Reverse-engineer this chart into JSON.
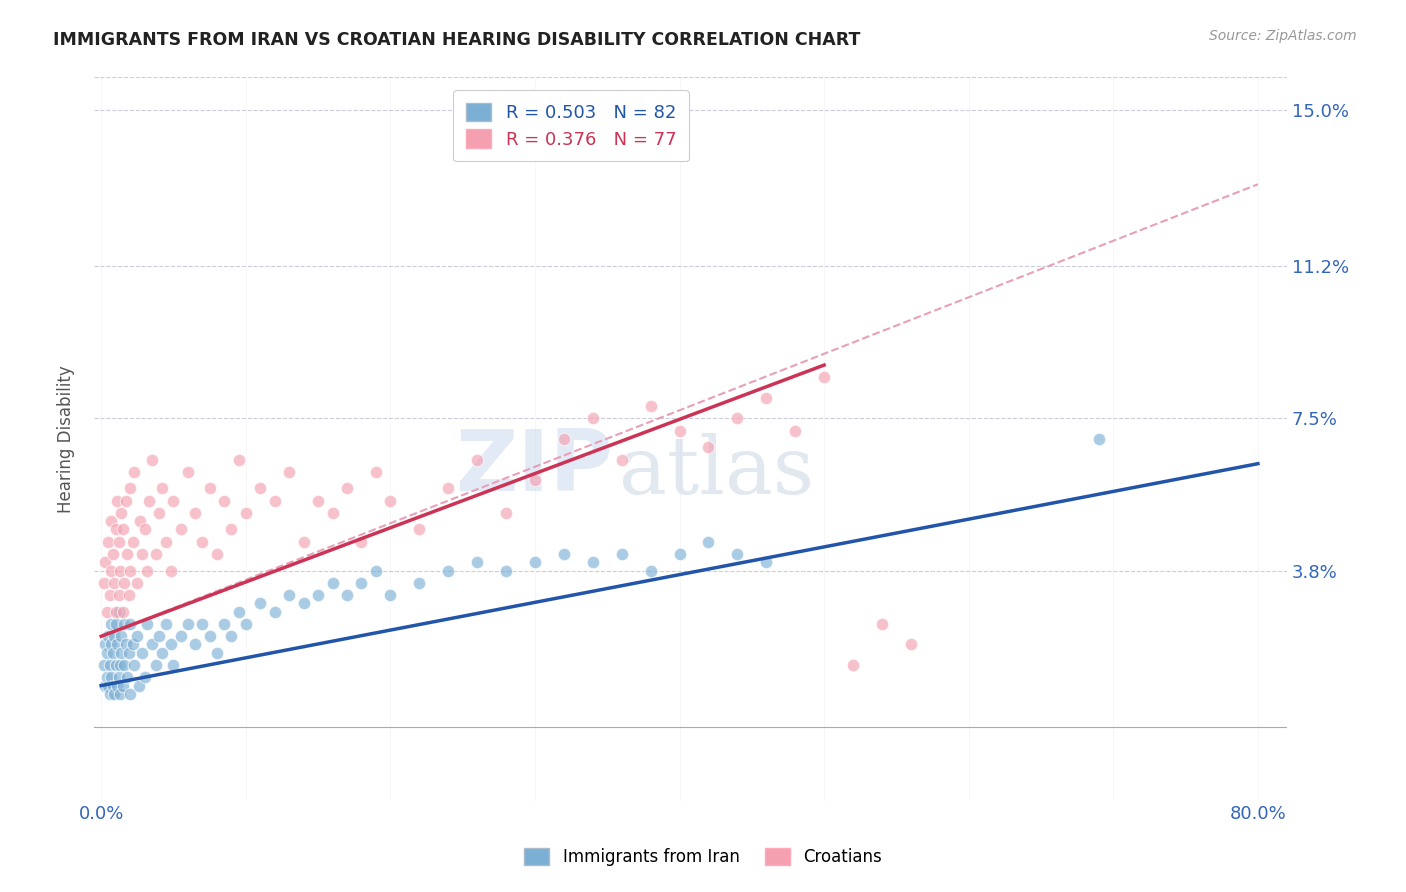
{
  "title": "IMMIGRANTS FROM IRAN VS CROATIAN HEARING DISABILITY CORRELATION CHART",
  "source": "Source: ZipAtlas.com",
  "ylabel": "Hearing Disability",
  "yticks": [
    0.0,
    0.038,
    0.075,
    0.112,
    0.15
  ],
  "ytick_labels": [
    "",
    "3.8%",
    "7.5%",
    "11.2%",
    "15.0%"
  ],
  "xticks": [
    0.0,
    0.1,
    0.2,
    0.3,
    0.4,
    0.5,
    0.6,
    0.7,
    0.8
  ],
  "xlim": [
    -0.005,
    0.82
  ],
  "ylim": [
    -0.018,
    0.158
  ],
  "legend_blue_r": "R = 0.503",
  "legend_blue_n": "N = 82",
  "legend_pink_r": "R = 0.376",
  "legend_pink_n": "N = 77",
  "blue_color": "#7BAFD4",
  "pink_color": "#F4A0B0",
  "blue_line_color": "#2255AA",
  "pink_line_color": "#CC3355",
  "dashed_line_color": "#E8A0B8",
  "watermark_zip": "ZIP",
  "watermark_atlas": "atlas",
  "blue_line_x0": 0.0,
  "blue_line_y0": 0.01,
  "blue_line_x1": 0.8,
  "blue_line_y1": 0.064,
  "pink_line_x0": 0.0,
  "pink_line_y0": 0.022,
  "pink_line_x1": 0.5,
  "pink_line_y1": 0.088,
  "dashed_line_x0": 0.0,
  "dashed_line_y0": 0.022,
  "dashed_line_x1": 0.8,
  "dashed_line_y1": 0.132,
  "blue_scatter_x": [
    0.002,
    0.003,
    0.003,
    0.004,
    0.004,
    0.005,
    0.005,
    0.006,
    0.006,
    0.007,
    0.007,
    0.007,
    0.008,
    0.008,
    0.009,
    0.009,
    0.01,
    0.01,
    0.011,
    0.011,
    0.012,
    0.012,
    0.013,
    0.013,
    0.014,
    0.014,
    0.015,
    0.016,
    0.016,
    0.017,
    0.018,
    0.019,
    0.02,
    0.02,
    0.022,
    0.023,
    0.025,
    0.026,
    0.028,
    0.03,
    0.032,
    0.035,
    0.038,
    0.04,
    0.042,
    0.045,
    0.048,
    0.05,
    0.055,
    0.06,
    0.065,
    0.07,
    0.075,
    0.08,
    0.085,
    0.09,
    0.095,
    0.1,
    0.11,
    0.12,
    0.13,
    0.14,
    0.15,
    0.16,
    0.17,
    0.18,
    0.19,
    0.2,
    0.22,
    0.24,
    0.26,
    0.28,
    0.3,
    0.32,
    0.34,
    0.36,
    0.38,
    0.4,
    0.42,
    0.44,
    0.46,
    0.69
  ],
  "blue_scatter_y": [
    0.015,
    0.01,
    0.02,
    0.012,
    0.018,
    0.01,
    0.022,
    0.015,
    0.008,
    0.02,
    0.012,
    0.025,
    0.01,
    0.018,
    0.008,
    0.022,
    0.015,
    0.025,
    0.01,
    0.02,
    0.012,
    0.028,
    0.015,
    0.008,
    0.022,
    0.018,
    0.01,
    0.025,
    0.015,
    0.02,
    0.012,
    0.018,
    0.008,
    0.025,
    0.02,
    0.015,
    0.022,
    0.01,
    0.018,
    0.012,
    0.025,
    0.02,
    0.015,
    0.022,
    0.018,
    0.025,
    0.02,
    0.015,
    0.022,
    0.025,
    0.02,
    0.025,
    0.022,
    0.018,
    0.025,
    0.022,
    0.028,
    0.025,
    0.03,
    0.028,
    0.032,
    0.03,
    0.032,
    0.035,
    0.032,
    0.035,
    0.038,
    0.032,
    0.035,
    0.038,
    0.04,
    0.038,
    0.04,
    0.042,
    0.04,
    0.042,
    0.038,
    0.042,
    0.045,
    0.042,
    0.04,
    0.07
  ],
  "pink_scatter_x": [
    0.002,
    0.003,
    0.004,
    0.005,
    0.006,
    0.007,
    0.007,
    0.008,
    0.009,
    0.01,
    0.01,
    0.011,
    0.012,
    0.012,
    0.013,
    0.014,
    0.015,
    0.015,
    0.016,
    0.017,
    0.018,
    0.019,
    0.02,
    0.02,
    0.022,
    0.023,
    0.025,
    0.027,
    0.028,
    0.03,
    0.032,
    0.033,
    0.035,
    0.038,
    0.04,
    0.042,
    0.045,
    0.048,
    0.05,
    0.055,
    0.06,
    0.065,
    0.07,
    0.075,
    0.08,
    0.085,
    0.09,
    0.095,
    0.1,
    0.11,
    0.12,
    0.13,
    0.14,
    0.15,
    0.16,
    0.17,
    0.18,
    0.19,
    0.2,
    0.22,
    0.24,
    0.26,
    0.28,
    0.3,
    0.32,
    0.34,
    0.36,
    0.38,
    0.4,
    0.42,
    0.44,
    0.46,
    0.48,
    0.5,
    0.52,
    0.54,
    0.56
  ],
  "pink_scatter_y": [
    0.035,
    0.04,
    0.028,
    0.045,
    0.032,
    0.038,
    0.05,
    0.042,
    0.035,
    0.048,
    0.028,
    0.055,
    0.032,
    0.045,
    0.038,
    0.052,
    0.028,
    0.048,
    0.035,
    0.055,
    0.042,
    0.032,
    0.058,
    0.038,
    0.045,
    0.062,
    0.035,
    0.05,
    0.042,
    0.048,
    0.038,
    0.055,
    0.065,
    0.042,
    0.052,
    0.058,
    0.045,
    0.038,
    0.055,
    0.048,
    0.062,
    0.052,
    0.045,
    0.058,
    0.042,
    0.055,
    0.048,
    0.065,
    0.052,
    0.058,
    0.055,
    0.062,
    0.045,
    0.055,
    0.052,
    0.058,
    0.045,
    0.062,
    0.055,
    0.048,
    0.058,
    0.065,
    0.052,
    0.06,
    0.07,
    0.075,
    0.065,
    0.078,
    0.072,
    0.068,
    0.075,
    0.08,
    0.072,
    0.085,
    0.015,
    0.025,
    0.02
  ]
}
